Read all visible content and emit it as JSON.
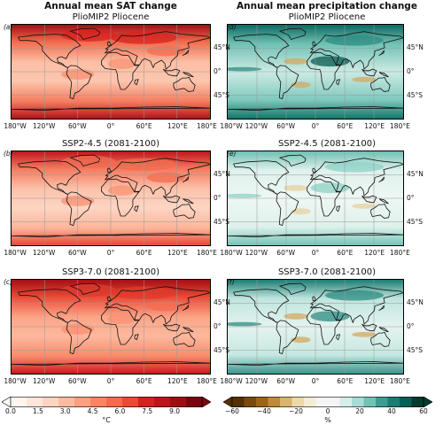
{
  "columns": [
    {
      "title": "Annual mean SAT change"
    },
    {
      "title": "Annual mean precipitation change"
    }
  ],
  "panels": [
    {
      "label": "(a)",
      "title": "PlioMIP2 Pliocene",
      "variable": "sat",
      "scenario": "pliocene"
    },
    {
      "label": "(d)",
      "title": "PlioMIP2 Pliocene",
      "variable": "precip",
      "scenario": "pliocene"
    },
    {
      "label": "(b)",
      "title": "SSP2-4.5 (2081-2100)",
      "variable": "sat",
      "scenario": "ssp245"
    },
    {
      "label": "(e)",
      "title": "SSP2-4.5 (2081-2100)",
      "variable": "precip",
      "scenario": "ssp245"
    },
    {
      "label": "(c)",
      "title": "SSP3-7.0 (2081-2100)",
      "variable": "sat",
      "scenario": "ssp370"
    },
    {
      "label": "(f)",
      "title": "SSP3-7.0 (2081-2100)",
      "variable": "precip",
      "scenario": "ssp370"
    }
  ],
  "lon_ticks": [
    "180°W",
    "120°W",
    "60°W",
    "0°",
    "60°E",
    "120°E",
    "180°E"
  ],
  "lat_ticks": [
    "45°N",
    "0°",
    "45°S"
  ],
  "colorbars": [
    {
      "unit": "°C",
      "ticks": [
        "0.0",
        "1.5",
        "3.0",
        "4.5",
        "6.0",
        "7.5",
        "9.0"
      ],
      "colors": [
        "#fff5f0",
        "#fee6da",
        "#fdd4c2",
        "#fcbba1",
        "#fca082",
        "#fb8464",
        "#f6694c",
        "#eb4a35",
        "#d52221",
        "#bc141a",
        "#9c0d14",
        "#7a0510"
      ]
    },
    {
      "unit": "%",
      "ticks": [
        "−60",
        "−40",
        "−20",
        "0",
        "20",
        "40",
        "60"
      ],
      "colors": [
        "#543005",
        "#7a4a0c",
        "#9d6418",
        "#bf8a3a",
        "#d8b46e",
        "#ecd9a8",
        "#f5ecd6",
        "#f5f5f5",
        "#f5f5f5",
        "#d5eeea",
        "#a6ddd4",
        "#72c2b6",
        "#3e9c92",
        "#1b7d73",
        "#046057",
        "#003c30"
      ]
    }
  ]
}
